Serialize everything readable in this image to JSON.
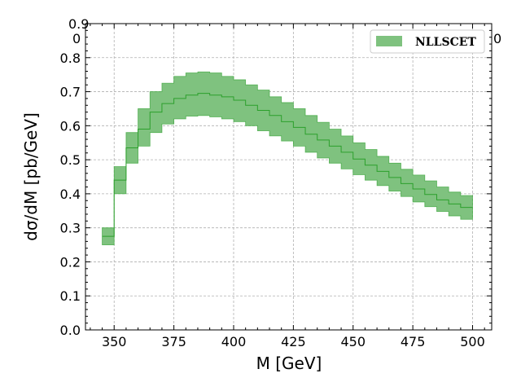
{
  "chart_data": {
    "type": "area",
    "title": "",
    "xlabel": "M [GeV]",
    "ylabel": "dσ/dM [pb/GeV]",
    "xlim": [
      338,
      508
    ],
    "ylim": [
      0.0,
      0.9
    ],
    "grid": true,
    "legend_position": "top-right",
    "color": "#2ca02c",
    "band_color": "#7fc27f",
    "x_ticks": [
      "350",
      "375",
      "400",
      "425",
      "450",
      "475",
      "500"
    ],
    "y_ticks": [
      "0.0",
      "0.1",
      "0.2",
      "0.3",
      "0.4",
      "0.5",
      "0.6",
      "0.7",
      "0.8",
      "0.9"
    ],
    "series": [
      {
        "name": "NLLSCET",
        "bin_edges": [
          345,
          350,
          355,
          360,
          365,
          370,
          375,
          380,
          385,
          390,
          395,
          400,
          405,
          410,
          415,
          420,
          425,
          430,
          435,
          440,
          445,
          450,
          455,
          460,
          465,
          470,
          475,
          480,
          485,
          490,
          495,
          500
        ],
        "central": [
          0.275,
          0.44,
          0.535,
          0.59,
          0.64,
          0.665,
          0.68,
          0.69,
          0.695,
          0.69,
          0.685,
          0.675,
          0.66,
          0.645,
          0.63,
          0.612,
          0.595,
          0.575,
          0.558,
          0.54,
          0.522,
          0.502,
          0.484,
          0.466,
          0.448,
          0.43,
          0.414,
          0.398,
          0.382,
          0.37,
          0.36
        ],
        "upper": [
          0.3,
          0.48,
          0.58,
          0.65,
          0.7,
          0.725,
          0.745,
          0.755,
          0.758,
          0.755,
          0.745,
          0.735,
          0.72,
          0.705,
          0.685,
          0.668,
          0.65,
          0.63,
          0.61,
          0.59,
          0.57,
          0.55,
          0.53,
          0.51,
          0.49,
          0.472,
          0.455,
          0.438,
          0.42,
          0.405,
          0.395
        ],
        "lower": [
          0.25,
          0.4,
          0.49,
          0.54,
          0.58,
          0.605,
          0.62,
          0.628,
          0.63,
          0.626,
          0.62,
          0.612,
          0.6,
          0.585,
          0.57,
          0.555,
          0.54,
          0.522,
          0.505,
          0.49,
          0.473,
          0.456,
          0.44,
          0.424,
          0.408,
          0.392,
          0.376,
          0.362,
          0.348,
          0.335,
          0.325
        ]
      }
    ],
    "overlap_artifacts": [
      "0.9",
      "0",
      "0"
    ]
  }
}
